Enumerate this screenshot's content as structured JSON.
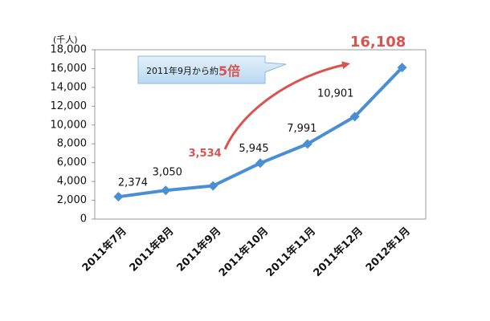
{
  "chart_data": {
    "type": "line",
    "y_axis_label": "(千人)",
    "categories": [
      "2011年7月",
      "2011年8月",
      "2011年9月",
      "2011年10月",
      "2011年11月",
      "2011年12月",
      "2012年1月"
    ],
    "series": [
      {
        "color": "#4a8fd4",
        "values": [
          2374,
          3050,
          3534,
          5945,
          7991,
          10901,
          16108
        ]
      }
    ],
    "value_labels": [
      "2,374",
      "3,050",
      "3,534",
      "5,945",
      "7,991",
      "10,901",
      "16,108"
    ],
    "value_label_colors": [
      "#111111",
      "#111111",
      "#d9534f",
      "#111111",
      "#111111",
      "#111111",
      "#d9534f"
    ],
    "ylim": [
      0,
      18000
    ],
    "yticks": [
      0,
      {
        "value": 2000,
        "label": "2,000"
      },
      {
        "value": 4000,
        "label": "4,000"
      },
      {
        "value": 6000,
        "label": "6,000"
      },
      {
        "value": 8000,
        "label": "8,000"
      },
      {
        "value": 10000,
        "label": "10,000"
      },
      {
        "value": 12000,
        "label": "12,000"
      },
      {
        "value": 14000,
        "label": "14,000"
      },
      {
        "value": 16000,
        "label": "16,000"
      },
      {
        "value": 18000,
        "label": "18,000"
      }
    ],
    "grid": false,
    "annotation": {
      "text": "2011年9月から約",
      "emphasis": "5倍"
    }
  }
}
